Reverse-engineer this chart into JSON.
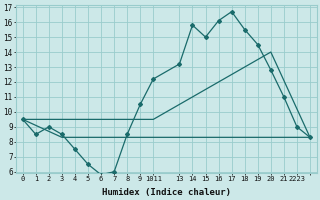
{
  "xlabel": "Humidex (Indice chaleur)",
  "background_color": "#cce8e8",
  "grid_color": "#99cccc",
  "line_color": "#1a6b6b",
  "ylim": [
    6,
    17
  ],
  "yticks": [
    6,
    7,
    8,
    9,
    10,
    11,
    12,
    13,
    14,
    15,
    16,
    17
  ],
  "xtick_positions": [
    0,
    1,
    2,
    3,
    4,
    5,
    6,
    7,
    8,
    9,
    10,
    12,
    13,
    14,
    15,
    16,
    17,
    18,
    19,
    20,
    21,
    22
  ],
  "xtick_labels": [
    "0",
    "1",
    "2",
    "3",
    "4",
    "5",
    "6",
    "7",
    "8",
    "9",
    "1011",
    "13",
    "14",
    "15",
    "16",
    "17",
    "18",
    "19",
    "20",
    "21",
    "2223",
    ""
  ],
  "line1_x": [
    0,
    1,
    2,
    3,
    4,
    5,
    6,
    7,
    8,
    9,
    10,
    12,
    13,
    14,
    15,
    16,
    17,
    18,
    19,
    20,
    21,
    22
  ],
  "line1_y": [
    9.5,
    8.5,
    9.0,
    8.5,
    7.5,
    6.5,
    5.8,
    6.0,
    8.5,
    10.5,
    12.2,
    13.2,
    15.8,
    15.0,
    16.1,
    16.7,
    15.5,
    14.5,
    12.8,
    11.0,
    9.0,
    8.3
  ],
  "line2_x": [
    0,
    10,
    19,
    22
  ],
  "line2_y": [
    9.5,
    9.5,
    14.0,
    8.3
  ],
  "line3_x": [
    0,
    3,
    16,
    22
  ],
  "line3_y": [
    9.5,
    8.3,
    8.3,
    8.3
  ]
}
